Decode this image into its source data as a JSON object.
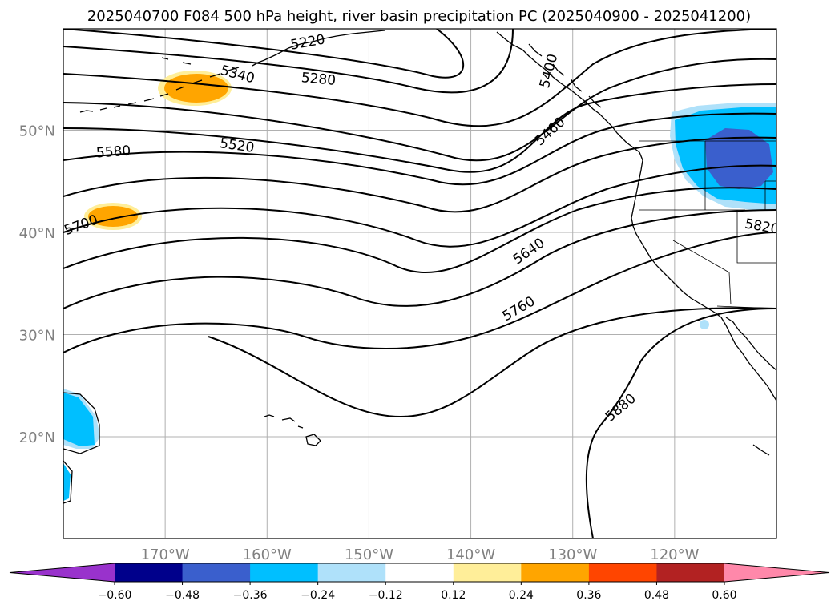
{
  "title": "2025040700 F084 500 hPa height, river basin precipitation PC (2025040900 - 2025041200)",
  "latitude_labels": [
    {
      "label": "50°N",
      "lat": 50
    },
    {
      "label": "40°N",
      "lat": 40
    },
    {
      "label": "30°N",
      "lat": 30
    },
    {
      "label": "20°N",
      "lat": 20
    }
  ],
  "longitude_labels": [
    {
      "label": "170°W",
      "lon": -170
    },
    {
      "label": "160°W",
      "lon": -160
    },
    {
      "label": "150°W",
      "lon": -150
    },
    {
      "label": "140°W",
      "lon": -140
    },
    {
      "label": "130°W",
      "lon": -130
    },
    {
      "label": "120°W",
      "lon": -120
    }
  ],
  "contour_labels": [
    "5220",
    "5280",
    "5340",
    "5400",
    "5460",
    "5520",
    "5580",
    "5640",
    "5700",
    "5760",
    "5820",
    "5880"
  ],
  "colorbar": {
    "ticks": [
      "−0.60",
      "−0.48",
      "−0.36",
      "−0.24",
      "−0.12",
      "0.12",
      "0.24",
      "0.36",
      "0.48",
      "0.60"
    ],
    "colors": [
      "#9932cc",
      "#00008b",
      "#3a5fcd",
      "#00bfff",
      "#afe1fa",
      "#ffffff",
      "#ffee99",
      "#ffa500",
      "#ff4500",
      "#b22222",
      "#ff88aa"
    ]
  }
}
